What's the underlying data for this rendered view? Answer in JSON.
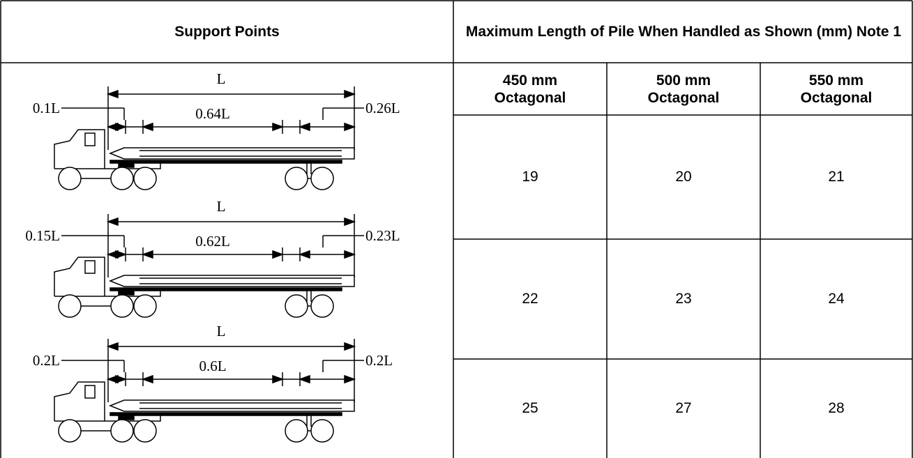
{
  "header": {
    "support_points": "Support Points",
    "max_length": "Maximum Length of Pile When Handled as Shown (mm) Note 1"
  },
  "subheaders": [
    "450 mm Octagonal",
    "500 mm Octagonal",
    "550 mm Octagonal"
  ],
  "diagrams": [
    {
      "length": "L",
      "left": "0.1L",
      "middle": "0.64L",
      "right": "0.26L"
    },
    {
      "length": "L",
      "left": "0.15L",
      "middle": "0.62L",
      "right": "0.23L"
    },
    {
      "length": "L",
      "left": "0.2L",
      "middle": "0.6L",
      "right": "0.2L"
    }
  ],
  "rows": [
    [
      19,
      20,
      21
    ],
    [
      22,
      23,
      24
    ],
    [
      25,
      27,
      28
    ]
  ]
}
